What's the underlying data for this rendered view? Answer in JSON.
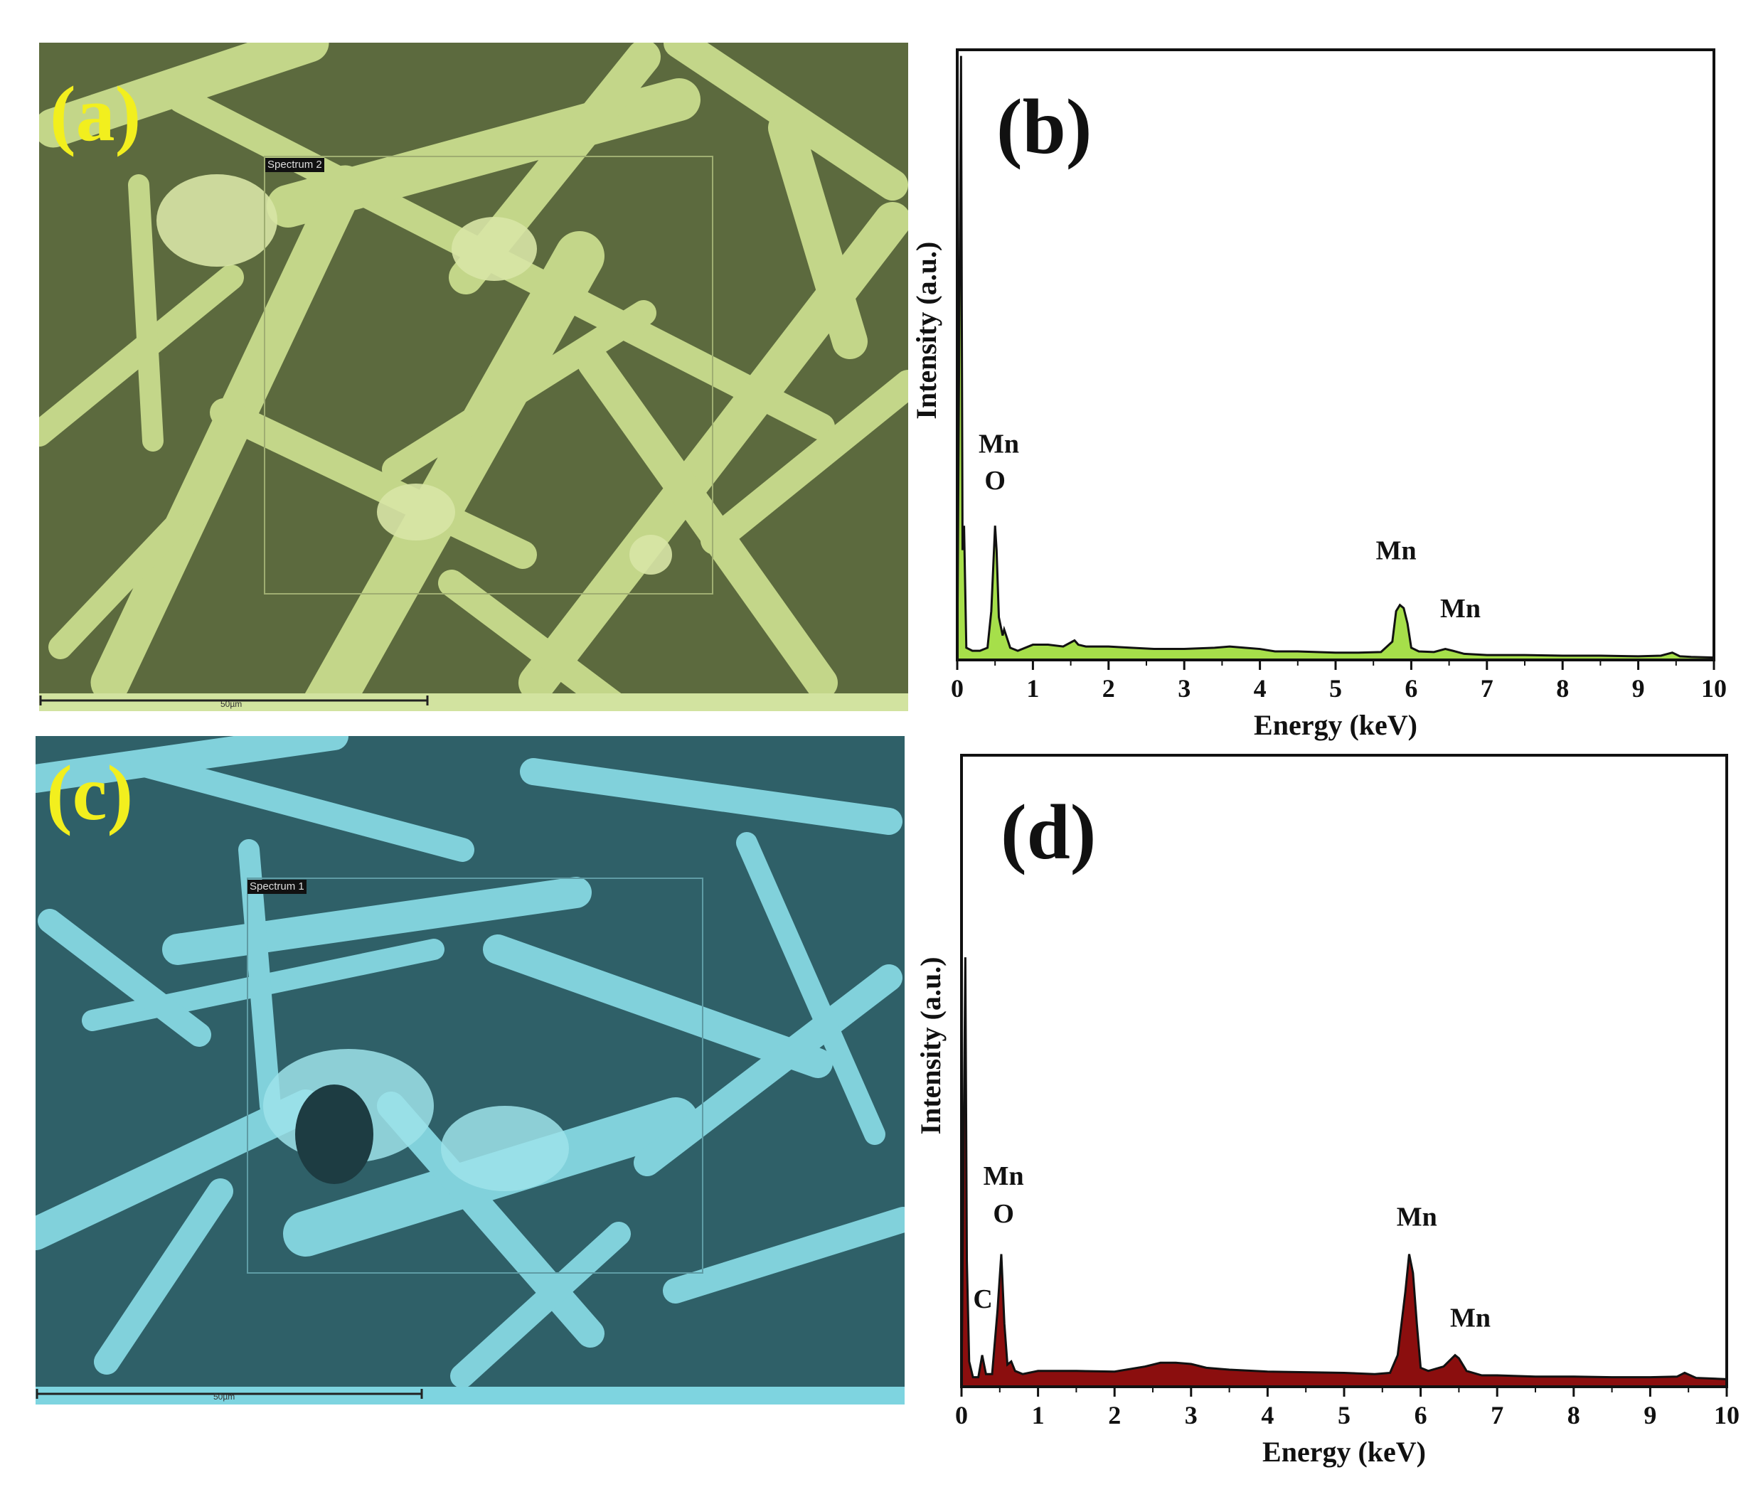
{
  "panels": {
    "a": {
      "letter": "(a)",
      "spectrum_tag": "Spectrum 2",
      "scalebar_label": "50µm",
      "tint": "#c8dc8c",
      "letter_color": "#f2ef1e"
    },
    "c": {
      "letter": "(c)",
      "spectrum_tag": "Spectrum 1",
      "scalebar_label": "50µm",
      "tint": "#7fd3de",
      "letter_color": "#f2ef1e"
    }
  },
  "chart_data": [
    {
      "type": "area",
      "panel_label": "(b)",
      "xlabel": "Energy (keV)",
      "ylabel": "Intensity (a.u.)",
      "xlim": [
        0,
        10
      ],
      "ylim": [
        0,
        100
      ],
      "xticks": [
        "0",
        "1",
        "2",
        "3",
        "4",
        "5",
        "6",
        "7",
        "8",
        "9",
        "10"
      ],
      "fill_color": "#a6df4a",
      "line_color": "#111111",
      "grid": false,
      "spectrum": {
        "x": [
          0,
          0.05,
          0.07,
          0.09,
          0.12,
          0.2,
          0.3,
          0.4,
          0.45,
          0.5,
          0.52,
          0.55,
          0.6,
          0.62,
          0.7,
          0.8,
          1.0,
          1.2,
          1.4,
          1.55,
          1.6,
          1.7,
          2.0,
          2.3,
          2.6,
          3.0,
          3.4,
          3.6,
          3.8,
          4.0,
          4.2,
          4.5,
          5.0,
          5.3,
          5.6,
          5.75,
          5.8,
          5.85,
          5.9,
          5.95,
          6.0,
          6.1,
          6.3,
          6.45,
          6.55,
          6.7,
          7.0,
          7.5,
          8.0,
          8.5,
          9.0,
          9.3,
          9.45,
          9.55,
          9.7,
          10.0
        ],
        "y": [
          0,
          99,
          18,
          22,
          2,
          1.5,
          1.5,
          2,
          8,
          22,
          18,
          7,
          4,
          5,
          2,
          1.5,
          2.5,
          2.5,
          2.2,
          3.2,
          2.5,
          2.2,
          2.2,
          2.0,
          1.8,
          1.8,
          2.0,
          2.2,
          2.0,
          1.8,
          1.4,
          1.4,
          1.2,
          1.2,
          1.3,
          3,
          8,
          9,
          8.5,
          6,
          2,
          1.4,
          1.3,
          1.8,
          1.5,
          1.0,
          0.8,
          0.8,
          0.7,
          0.7,
          0.6,
          0.7,
          1.2,
          0.6,
          0.5,
          0.4
        ]
      },
      "annotations": [
        {
          "text": "Mn",
          "x": 0.55,
          "y": 34
        },
        {
          "text": "O",
          "x": 0.5,
          "y": 28
        },
        {
          "text": "Mn",
          "x": 5.8,
          "y": 16.5
        },
        {
          "text": "Mn",
          "x": 6.65,
          "y": 7
        }
      ]
    },
    {
      "type": "area",
      "panel_label": "(d)",
      "xlabel": "Energy (keV)",
      "ylabel": "Intensity (a.u.)",
      "xlim": [
        0,
        10
      ],
      "ylim": [
        0,
        100
      ],
      "xticks": [
        "0",
        "1",
        "2",
        "3",
        "4",
        "5",
        "6",
        "7",
        "8",
        "9",
        "10"
      ],
      "fill_color": "#8b0e0e",
      "line_color": "#111111",
      "grid": false,
      "spectrum": {
        "x": [
          0,
          0.05,
          0.07,
          0.1,
          0.15,
          0.22,
          0.27,
          0.32,
          0.4,
          0.47,
          0.52,
          0.56,
          0.6,
          0.65,
          0.7,
          0.8,
          1.0,
          1.5,
          2.0,
          2.4,
          2.6,
          2.8,
          3.0,
          3.2,
          3.5,
          4.0,
          4.5,
          5.0,
          5.4,
          5.6,
          5.7,
          5.8,
          5.85,
          5.9,
          5.95,
          6.0,
          6.1,
          6.3,
          6.45,
          6.5,
          6.6,
          6.8,
          7.0,
          7.5,
          8.0,
          8.5,
          9.0,
          9.35,
          9.45,
          9.6,
          10.0
        ],
        "y": [
          0,
          68,
          20,
          4,
          1.5,
          1.5,
          5,
          2,
          2,
          12,
          21,
          10,
          3.5,
          4,
          2.5,
          2,
          2.5,
          2.5,
          2.4,
          3.2,
          3.8,
          3.8,
          3.6,
          3.0,
          2.7,
          2.4,
          2.3,
          2.2,
          2.0,
          2.2,
          5,
          15,
          21,
          18,
          10,
          3,
          2.5,
          3.2,
          5,
          4.5,
          2.5,
          1.8,
          1.8,
          1.6,
          1.6,
          1.5,
          1.5,
          1.6,
          2.2,
          1.4,
          1.2
        ]
      },
      "annotations": [
        {
          "text": "Mn",
          "x": 0.55,
          "y": 32
        },
        {
          "text": "O",
          "x": 0.55,
          "y": 26
        },
        {
          "text": "C",
          "x": 0.28,
          "y": 12.5
        },
        {
          "text": "Mn",
          "x": 5.95,
          "y": 25.5
        },
        {
          "text": "Mn",
          "x": 6.65,
          "y": 9.5
        }
      ]
    }
  ]
}
